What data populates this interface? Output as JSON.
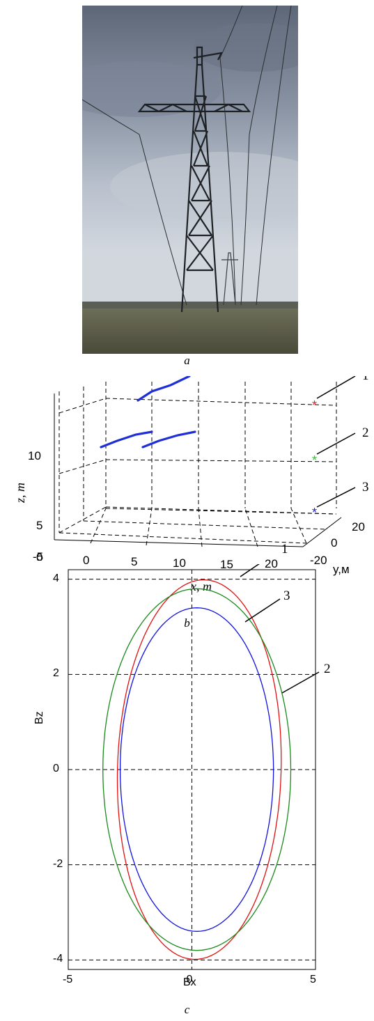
{
  "figure_a": {
    "caption": "a",
    "photo_subject": "steel lattice power transmission tower under overcast sky"
  },
  "figure_b": {
    "caption": "b",
    "xlabel": "x, m",
    "ylabel": "y,м",
    "zlabel": "z, m",
    "x_ticks": [
      "-5",
      "0",
      "5",
      "10",
      "15",
      "20"
    ],
    "y_ticks": [
      "20",
      "0",
      "-20"
    ],
    "z_ticks": [
      "0",
      "5",
      "10"
    ],
    "wire_labels": [
      "1",
      "2",
      "3"
    ],
    "colors": {
      "wire": "#1f2fd6",
      "sensor_1": "#e02020",
      "sensor_2": "#30c030",
      "sensor_3": "#2020d0"
    }
  },
  "figure_c": {
    "caption": "c",
    "xlabel": "Bx",
    "ylabel": "Bz",
    "x_ticks": [
      "-5",
      "0",
      "5"
    ],
    "y_ticks": [
      "4",
      "2",
      "0",
      "-2",
      "-4"
    ],
    "curve_labels": [
      "1",
      "3",
      "2"
    ],
    "colors": {
      "curve_1": "#e01010",
      "curve_2": "#1a8a1a",
      "curve_3": "#1010e0"
    }
  },
  "chart_data": [
    {
      "type": "scatter",
      "description_none": "",
      "x_range": [
        -5,
        20
      ],
      "y_range": [
        -20,
        20
      ],
      "z_range": [
        0,
        11
      ],
      "series": [
        {
          "name": "",
          "x": [
            0,
            5
          ],
          "z": [
            6.4,
            7.7
          ]
        },
        {
          "name": "",
          "x": [
            3,
            8
          ],
          "z": [
            10.3,
            11.5
          ]
        },
        {
          "name": "",
          "x": [
            5,
            10
          ],
          "z": [
            6.5,
            7.7
          ]
        }
      ],
      "markers": [
        {
          "label": "1",
          "x": 20,
          "z": 11.2
        },
        {
          "label": "2",
          "x": 20,
          "z": 7.0
        },
        {
          "label": "3",
          "x": 20,
          "z": 1.2
        }
      ]
    },
    {
      "type": "line",
      "xlabel": "Bx",
      "ylabel": "Bz",
      "xlim": [
        -5,
        5
      ],
      "ylim": [
        -4.2,
        4.2
      ],
      "grid": true,
      "series": [
        {
          "name": "1",
          "cx": 0.3,
          "cz": 0.0,
          "rx": 3.3,
          "rz": 4.0,
          "tilt_deg": -8
        },
        {
          "name": "2",
          "cx": 0.2,
          "cz": 0.0,
          "rx": 3.8,
          "rz": 3.8,
          "tilt_deg": 0
        },
        {
          "name": "3",
          "cx": 0.2,
          "cz": 0.0,
          "rx": 3.1,
          "rz": 3.4,
          "tilt_deg": 0
        }
      ]
    }
  ]
}
